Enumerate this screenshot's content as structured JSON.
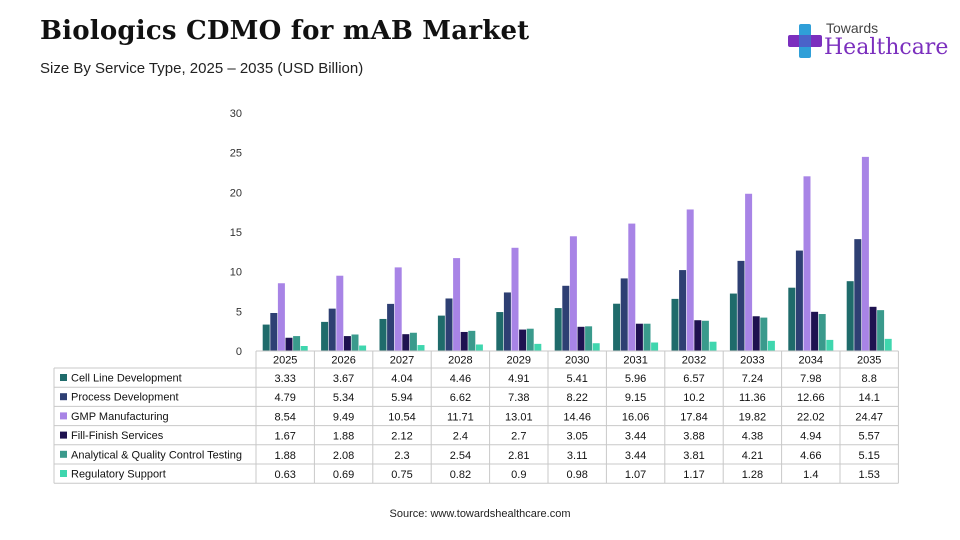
{
  "header": {
    "title": "Biologics CDMO for mAB Market",
    "subtitle": "Size By Service Type, 2025 – 2035 (USD Billion)"
  },
  "logo": {
    "top": "Towards",
    "main": "Healthcare",
    "icon": "cross-plus-icon"
  },
  "source": "Source: www.towardshealthcare.com",
  "chart_data": {
    "type": "bar",
    "categories": [
      "2025",
      "2026",
      "2027",
      "2028",
      "2029",
      "2030",
      "2031",
      "2032",
      "2033",
      "2034",
      "2035"
    ],
    "ylim": [
      0,
      30
    ],
    "yticks": [
      "0",
      "5",
      "10",
      "15",
      "20",
      "25",
      "30"
    ],
    "grid": false,
    "legend": "table-left",
    "series": [
      {
        "name": "Cell Line Development",
        "color": "#1f6b6b",
        "values": [
          3.33,
          3.67,
          4.04,
          4.46,
          4.91,
          5.41,
          5.96,
          6.57,
          7.24,
          7.98,
          8.8
        ],
        "labels": [
          "3.33",
          "3.67",
          "4.04",
          "4.46",
          "4.91",
          "5.41",
          "5.96",
          "6.57",
          "7.24",
          "7.98",
          "8.8"
        ]
      },
      {
        "name": "Process Development",
        "color": "#2e3f73",
        "values": [
          4.79,
          5.34,
          5.94,
          6.62,
          7.38,
          8.22,
          9.15,
          10.2,
          11.36,
          12.66,
          14.1
        ],
        "labels": [
          "4.79",
          "5.34",
          "5.94",
          "6.62",
          "7.38",
          "8.22",
          "9.15",
          "10.2",
          "11.36",
          "12.66",
          "14.1"
        ]
      },
      {
        "name": "GMP Manufacturing",
        "color": "#a884e6",
        "values": [
          8.54,
          9.49,
          10.54,
          11.71,
          13.01,
          14.46,
          16.06,
          17.84,
          19.82,
          22.02,
          24.47
        ],
        "labels": [
          "8.54",
          "9.49",
          "10.54",
          "11.71",
          "13.01",
          "14.46",
          "16.06",
          "17.84",
          "19.82",
          "22.02",
          "24.47"
        ]
      },
      {
        "name": "Fill-Finish Services",
        "color": "#1e1250",
        "values": [
          1.67,
          1.88,
          2.12,
          2.4,
          2.7,
          3.05,
          3.44,
          3.88,
          4.38,
          4.94,
          5.57
        ],
        "labels": [
          "1.67",
          "1.88",
          "2.12",
          "2.4",
          "2.7",
          "3.05",
          "3.44",
          "3.88",
          "4.38",
          "4.94",
          "5.57"
        ]
      },
      {
        "name": "Analytical & Quality Control Testing",
        "color": "#3a9a8c",
        "values": [
          1.88,
          2.08,
          2.3,
          2.54,
          2.81,
          3.11,
          3.44,
          3.81,
          4.21,
          4.66,
          5.15
        ],
        "labels": [
          "1.88",
          "2.08",
          "2.3",
          "2.54",
          "2.81",
          "3.11",
          "3.44",
          "3.81",
          "4.21",
          "4.66",
          "5.15"
        ]
      },
      {
        "name": "Regulatory Support",
        "color": "#3fd6ae",
        "values": [
          0.63,
          0.69,
          0.75,
          0.82,
          0.9,
          0.98,
          1.07,
          1.17,
          1.28,
          1.4,
          1.53
        ],
        "labels": [
          "0.63",
          "0.69",
          "0.75",
          "0.82",
          "0.9",
          "0.98",
          "1.07",
          "1.17",
          "1.28",
          "1.4",
          "1.53"
        ]
      }
    ]
  }
}
